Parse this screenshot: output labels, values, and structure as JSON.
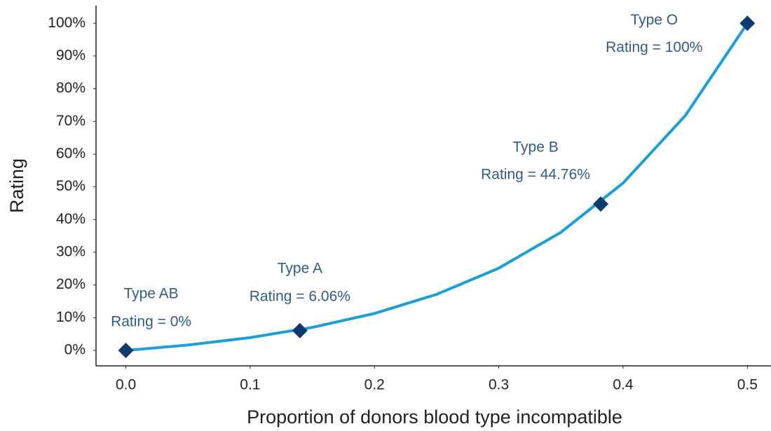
{
  "chart_data": {
    "type": "line",
    "x_label": "Proportion of donors blood type incompatible",
    "y_label": "Rating",
    "xlim": [
      -0.024,
      0.519
    ],
    "ylim": [
      -4.7,
      105.4
    ],
    "xticks": [
      {
        "value": 0,
        "label": "0.0"
      },
      0.1,
      0.2,
      0.3,
      0.4,
      0.5
    ],
    "yticks": [
      {
        "value": 0,
        "label": "0%"
      },
      {
        "value": 10,
        "label": "10%"
      },
      {
        "value": 20,
        "label": "20%"
      },
      {
        "value": 30,
        "label": "30%"
      },
      {
        "value": 40,
        "label": "40%"
      },
      {
        "value": 50,
        "label": "50%"
      },
      {
        "value": 60,
        "label": "60%"
      },
      {
        "value": 70,
        "label": "70%"
      },
      {
        "value": 80,
        "label": "80%"
      },
      {
        "value": 90,
        "label": "90%"
      },
      {
        "value": 100,
        "label": "100%"
      }
    ],
    "curve": {
      "color": "#1a9fdb",
      "x": [
        0,
        0.05,
        0.1,
        0.15,
        0.2,
        0.25,
        0.3,
        0.35,
        0.4,
        0.45,
        0.5
      ],
      "values": [
        0,
        1.66,
        3.93,
        7.04,
        11.3,
        17.15,
        25.15,
        36.12,
        51.16,
        71.75,
        100
      ]
    },
    "points": {
      "color": "#0d3b6e",
      "labels": [
        "Type AB",
        "Type A",
        "Type B",
        "Type O"
      ],
      "x": [
        0,
        0.14,
        0.382,
        0.5
      ],
      "values": [
        0,
        6.06,
        44.76,
        100
      ],
      "value_labels": [
        "Rating = 0%",
        "Rating = 6.06%",
        "Rating = 44.76%",
        "Rating = 100%"
      ]
    }
  }
}
